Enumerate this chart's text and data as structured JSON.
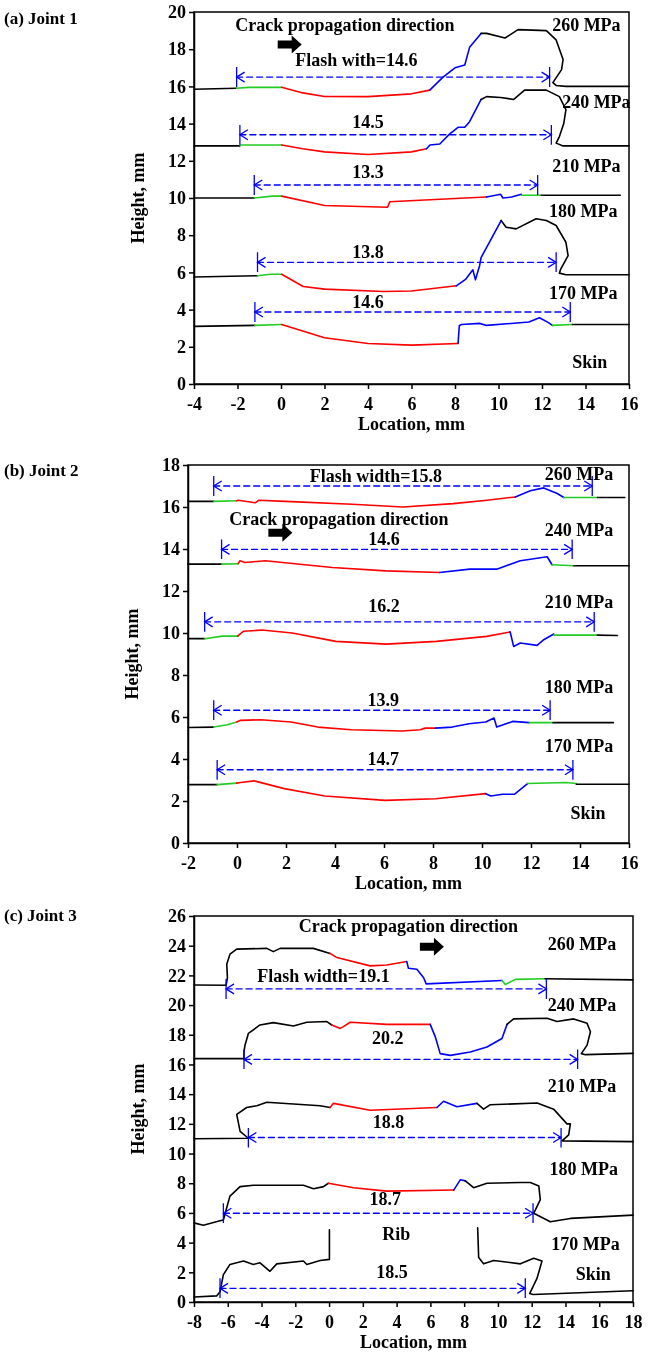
{
  "chart_data": [
    {
      "type": "line",
      "title": "(a)  Joint 1",
      "xlabel": "Location, mm",
      "ylabel": "Height, mm",
      "xlim": [
        -4,
        16
      ],
      "ylim": [
        0,
        20
      ],
      "xticks": [
        -4,
        -2,
        0,
        2,
        4,
        6,
        8,
        10,
        12,
        14,
        16
      ],
      "yticks": [
        0,
        2,
        4,
        6,
        8,
        10,
        12,
        14,
        16,
        18,
        20
      ],
      "series": [
        {
          "type": "line",
          "color": "#000000",
          "x": [
            -4,
            -2.04
          ],
          "values": [
            15.85,
            15.9
          ]
        },
        {
          "type": "line",
          "color": "#22cc22",
          "x": [
            -2.04,
            -1.5,
            0.03
          ],
          "values": [
            15.9,
            15.95,
            15.95
          ]
        },
        {
          "type": "line",
          "color": "#ff0000",
          "x": [
            0.03,
            1,
            2,
            4,
            6,
            6.84
          ],
          "values": [
            15.95,
            15.65,
            15.46,
            15.45,
            15.6,
            15.8
          ]
        },
        {
          "type": "line",
          "color": "#0000ff",
          "x": [
            6.84,
            7.45,
            8.0,
            8.45,
            8.67,
            9.2
          ],
          "values": [
            15.8,
            16.5,
            17.0,
            17.15,
            18.1,
            18.85
          ]
        },
        {
          "type": "line",
          "color": "#000000",
          "x": [
            9.2,
            9.45,
            10.3,
            10.9,
            12.2,
            12.65,
            12.97,
            12.9,
            12.5,
            12.65,
            13.1,
            16
          ],
          "values": [
            18.85,
            18.85,
            18.6,
            19.05,
            19.0,
            18.5,
            17.45,
            16.9,
            16.2,
            16.05,
            16.0,
            16.0
          ]
        },
        {
          "type": "line",
          "color": "#0000ff",
          "line_style": "dashed",
          "x": [
            -2.04,
            12.35
          ],
          "values": [
            16.5,
            16.5
          ]
        },
        {
          "type": "line",
          "color": "#000000",
          "x": [
            -4,
            -1.89
          ],
          "values": [
            12.8,
            12.8
          ]
        },
        {
          "type": "line",
          "color": "#22cc22",
          "x": [
            -1.89,
            0.03
          ],
          "values": [
            12.85,
            12.85
          ]
        },
        {
          "type": "line",
          "color": "#ff0000",
          "x": [
            0.03,
            1,
            2,
            4,
            6,
            6.69
          ],
          "values": [
            12.85,
            12.65,
            12.48,
            12.34,
            12.48,
            12.65
          ]
        },
        {
          "type": "line",
          "color": "#0000ff",
          "x": [
            6.69,
            6.85,
            7.3,
            7.76,
            8.14,
            8.45,
            8.67,
            9.2
          ],
          "values": [
            12.65,
            12.85,
            12.9,
            13.45,
            13.8,
            13.8,
            14.1,
            15.3
          ]
        },
        {
          "type": "line",
          "color": "#000000",
          "x": [
            9.2,
            9.45,
            10.1,
            10.7,
            11.2,
            12.2,
            12.8,
            13.1,
            13.0,
            12.8,
            12.65,
            12.97,
            16
          ],
          "values": [
            15.3,
            15.45,
            15.4,
            15.3,
            15.8,
            15.8,
            15.45,
            14.75,
            14.0,
            13.3,
            12.95,
            12.8,
            12.8
          ]
        },
        {
          "type": "line",
          "color": "#0000ff",
          "line_style": "dashed",
          "x": [
            -1.89,
            12.43
          ],
          "values": [
            13.4,
            13.4
          ]
        },
        {
          "type": "line",
          "color": "#000000",
          "x": [
            -4,
            -1.23
          ],
          "values": [
            10.0,
            10.0
          ]
        },
        {
          "type": "line",
          "color": "#22cc22",
          "x": [
            -1.23,
            -0.4,
            0.03
          ],
          "values": [
            10.0,
            10.1,
            10.1
          ]
        },
        {
          "type": "line",
          "color": "#ff0000",
          "x": [
            0.03,
            2.0,
            4.9,
            5.0,
            8.0,
            9.45
          ],
          "values": [
            10.1,
            9.6,
            9.5,
            9.8,
            9.97,
            10.05
          ]
        },
        {
          "type": "line",
          "color": "#0000ff",
          "x": [
            9.45,
            10.1,
            10.2,
            10.6,
            11.05
          ],
          "values": [
            10.05,
            10.2,
            10.0,
            10.05,
            10.2
          ]
        },
        {
          "type": "line",
          "color": "#22cc22",
          "x": [
            11.05,
            11.97
          ],
          "values": [
            10.15,
            10.15
          ]
        },
        {
          "type": "line",
          "color": "#000000",
          "x": [
            11.97,
            15.6
          ],
          "values": [
            10.15,
            10.15
          ]
        },
        {
          "type": "line",
          "color": "#0000ff",
          "line_style": "dashed",
          "x": [
            -1.23,
            11.8
          ],
          "values": [
            10.7,
            10.7
          ]
        },
        {
          "type": "line",
          "color": "#000000",
          "x": [
            -4,
            -1.08
          ],
          "values": [
            5.75,
            5.82
          ]
        },
        {
          "type": "line",
          "color": "#22cc22",
          "x": [
            -1.08,
            -0.5,
            0.03
          ],
          "values": [
            5.82,
            5.9,
            5.9
          ]
        },
        {
          "type": "line",
          "color": "#ff0000",
          "x": [
            0.03,
            1.02,
            2.0,
            4.7,
            6.0,
            8.06
          ],
          "values": [
            5.9,
            5.24,
            5.1,
            4.97,
            5.0,
            5.28
          ]
        },
        {
          "type": "line",
          "color": "#0000ff",
          "x": [
            8.06,
            8.5,
            8.82,
            8.94,
            9.13,
            9.2,
            9.58,
            10.12
          ],
          "values": [
            5.28,
            5.64,
            6.14,
            5.6,
            6.36,
            6.8,
            7.62,
            8.79
          ]
        },
        {
          "type": "line",
          "color": "#000000",
          "x": [
            10.12,
            10.35,
            10.81,
            11.73,
            12.2,
            12.65,
            13.1,
            13.2,
            12.86,
            12.8,
            13.1,
            16
          ],
          "values": [
            8.79,
            8.43,
            8.34,
            8.88,
            8.79,
            8.52,
            7.62,
            6.9,
            6.18,
            5.96,
            5.87,
            5.87
          ]
        },
        {
          "type": "line",
          "color": "#0000ff",
          "line_style": "dashed",
          "x": [
            -1.08,
            12.65
          ],
          "values": [
            6.54,
            6.54
          ]
        },
        {
          "type": "line",
          "color": "#000000",
          "x": [
            -4,
            -1.2
          ],
          "values": [
            3.1,
            3.15
          ]
        },
        {
          "type": "line",
          "color": "#22cc22",
          "x": [
            -1.2,
            0.03
          ],
          "values": [
            3.15,
            3.2
          ]
        },
        {
          "type": "line",
          "color": "#ff0000",
          "x": [
            0.03,
            2.0,
            4.0,
            6.0,
            8.14
          ],
          "values": [
            3.2,
            2.49,
            2.18,
            2.09,
            2.18
          ]
        },
        {
          "type": "line",
          "color": "#0000ff",
          "x": [
            8.14,
            8.2,
            8.3,
            9.13,
            9.45,
            11.4,
            11.88,
            12.3,
            12.47
          ],
          "values": [
            2.18,
            3.15,
            3.2,
            3.26,
            3.15,
            3.33,
            3.56,
            3.3,
            3.15
          ]
        },
        {
          "type": "line",
          "color": "#22cc22",
          "x": [
            12.47,
            13.4
          ],
          "values": [
            3.15,
            3.2
          ]
        },
        {
          "type": "line",
          "color": "#000000",
          "x": [
            13.4,
            16
          ],
          "values": [
            3.2,
            3.2
          ]
        },
        {
          "type": "line",
          "color": "#0000ff",
          "line_style": "dashed",
          "x": [
            -1.2,
            13.3
          ],
          "values": [
            3.87,
            3.87
          ]
        }
      ],
      "annotations": [
        "Crack propagation direction",
        "Flash with=14.6",
        "260 MPa",
        "14.5",
        "240 MPa",
        "13.3",
        "210 MPa",
        "13.8",
        "180 MPa",
        "14.6",
        "170 MPa",
        "Skin"
      ]
    },
    {
      "type": "line",
      "title": "(b)  Joint 2",
      "xlabel": "Location, mm",
      "ylabel": "Height, mm",
      "xlim": [
        -2,
        16
      ],
      "ylim": [
        0,
        18
      ],
      "xticks": [
        -2,
        0,
        2,
        4,
        6,
        8,
        10,
        12,
        14,
        16
      ],
      "yticks": [
        0,
        2,
        4,
        6,
        8,
        10,
        12,
        14,
        16,
        18
      ],
      "series": [
        {
          "type": "line",
          "color": "#000000",
          "x": [
            -2,
            -0.95
          ],
          "values": [
            16.27,
            16.27
          ]
        },
        {
          "type": "line",
          "color": "#22cc22",
          "x": [
            -0.95,
            -0.01
          ],
          "values": [
            16.27,
            16.3
          ]
        },
        {
          "type": "line",
          "color": "#ff0000",
          "x": [
            -0.01,
            0.05,
            0.74,
            0.88,
            1.97,
            4.7,
            6.77,
            8.82,
            10.2,
            11.36
          ],
          "values": [
            16.3,
            16.32,
            16.2,
            16.32,
            16.27,
            16.13,
            16.0,
            16.16,
            16.32,
            16.48
          ]
        },
        {
          "type": "line",
          "color": "#0000ff",
          "x": [
            11.36,
            11.97,
            12.52,
            13.07,
            13.34
          ],
          "values": [
            16.48,
            16.77,
            16.91,
            16.64,
            16.45
          ]
        },
        {
          "type": "line",
          "color": "#22cc22",
          "x": [
            13.34,
            14.71
          ],
          "values": [
            16.45,
            16.45
          ]
        },
        {
          "type": "line",
          "color": "#000000",
          "x": [
            14.71,
            15.83
          ],
          "values": [
            16.45,
            16.45
          ]
        },
        {
          "type": "line",
          "color": "#0000ff",
          "line_style": "dashed",
          "x": [
            -0.95,
            14.5
          ],
          "values": [
            17.0,
            17.0
          ]
        },
        {
          "type": "line",
          "color": "#000000",
          "x": [
            -2,
            -0.63
          ],
          "values": [
            13.28,
            13.28
          ]
        },
        {
          "type": "line",
          "color": "#22cc22",
          "x": [
            -0.63,
            0.05
          ],
          "values": [
            13.28,
            13.3
          ]
        },
        {
          "type": "line",
          "color": "#ff0000",
          "x": [
            0.05,
            0.12,
            0.33,
            1.15,
            3.89,
            6.08,
            8.27
          ],
          "values": [
            13.3,
            13.44,
            13.36,
            13.44,
            13.12,
            12.96,
            12.88
          ]
        },
        {
          "type": "line",
          "color": "#0000ff",
          "x": [
            8.27,
            9.5,
            10.6,
            11.56,
            12.66,
            12.86
          ],
          "values": [
            12.88,
            13.04,
            13.04,
            13.44,
            13.63,
            13.25
          ]
        },
        {
          "type": "line",
          "color": "#22cc22",
          "x": [
            12.86,
            13.75
          ],
          "values": [
            13.25,
            13.2
          ]
        },
        {
          "type": "line",
          "color": "#000000",
          "x": [
            13.75,
            16
          ],
          "values": [
            13.2,
            13.2
          ]
        },
        {
          "type": "line",
          "color": "#0000ff",
          "line_style": "dashed",
          "x": [
            -0.63,
            13.68
          ],
          "values": [
            13.98,
            13.98
          ]
        },
        {
          "type": "line",
          "color": "#000000",
          "x": [
            -2,
            -1.32
          ],
          "values": [
            9.73,
            9.73
          ]
        },
        {
          "type": "line",
          "color": "#22cc22",
          "x": [
            -1.32,
            -0.6,
            0.03
          ],
          "values": [
            9.73,
            9.85,
            9.85
          ]
        },
        {
          "type": "line",
          "color": "#ff0000",
          "x": [
            0.03,
            0.12,
            0.26,
            1.01,
            2.25,
            4.03,
            6.08,
            8.14,
            10.19,
            11.15
          ],
          "values": [
            9.85,
            9.95,
            10.08,
            10.14,
            10.0,
            9.6,
            9.47,
            9.6,
            9.84,
            10.05
          ]
        },
        {
          "type": "line",
          "color": "#0000ff",
          "x": [
            11.15,
            11.29,
            11.56,
            12.25,
            12.52,
            12.93
          ],
          "values": [
            10.05,
            9.36,
            9.52,
            9.41,
            9.68,
            9.95
          ]
        },
        {
          "type": "line",
          "color": "#22cc22",
          "x": [
            12.93,
            14.71
          ],
          "values": [
            9.9,
            9.9
          ]
        },
        {
          "type": "line",
          "color": "#000000",
          "x": [
            14.71,
            15.53
          ],
          "values": [
            9.9,
            9.88
          ]
        },
        {
          "type": "line",
          "color": "#0000ff",
          "line_style": "dashed",
          "x": [
            -1.32,
            14.58
          ],
          "values": [
            10.53,
            10.53
          ]
        },
        {
          "type": "line",
          "color": "#000000",
          "x": [
            -2,
            -0.95
          ],
          "values": [
            5.5,
            5.52
          ]
        },
        {
          "type": "line",
          "color": "#22cc22",
          "x": [
            -0.95,
            -0.4,
            -0.01
          ],
          "values": [
            5.52,
            5.63,
            5.76
          ]
        },
        {
          "type": "line",
          "color": "#ff0000",
          "x": [
            -0.01,
            0.15,
            0.97,
            2.2,
            3.3,
            4.67,
            6.73,
            7.48,
            7.68,
            8.1
          ],
          "values": [
            5.76,
            5.84,
            5.87,
            5.76,
            5.52,
            5.39,
            5.33,
            5.39,
            5.47,
            5.47
          ]
        },
        {
          "type": "line",
          "color": "#0000ff",
          "x": [
            8.1,
            8.78,
            9.47,
            10.15,
            10.49,
            10.6,
            11.25,
            11.93
          ],
          "values": [
            5.47,
            5.52,
            5.68,
            5.76,
            5.95,
            5.52,
            5.79,
            5.73
          ]
        },
        {
          "type": "line",
          "color": "#22cc22",
          "x": [
            11.93,
            12.9
          ],
          "values": [
            5.73,
            5.73
          ]
        },
        {
          "type": "line",
          "color": "#000000",
          "x": [
            12.9,
            15.36
          ],
          "values": [
            5.73,
            5.73
          ]
        },
        {
          "type": "line",
          "color": "#0000ff",
          "line_style": "dashed",
          "x": [
            -0.95,
            12.78
          ],
          "values": [
            6.32,
            6.32
          ]
        },
        {
          "type": "line",
          "color": "#000000",
          "x": [
            -2,
            -0.81
          ],
          "values": [
            2.78,
            2.78
          ]
        },
        {
          "type": "line",
          "color": "#22cc22",
          "x": [
            -0.81,
            -0.01
          ],
          "values": [
            2.78,
            2.85
          ]
        },
        {
          "type": "line",
          "color": "#ff0000",
          "x": [
            -0.01,
            0.15,
            0.7,
            1.93,
            3.58,
            6.04,
            8.1,
            10.15
          ],
          "values": [
            2.85,
            2.88,
            2.96,
            2.59,
            2.24,
            2.03,
            2.11,
            2.35
          ]
        },
        {
          "type": "line",
          "color": "#0000ff",
          "x": [
            10.15,
            10.36,
            10.84,
            11.32,
            11.86
          ],
          "values": [
            2.35,
            2.24,
            2.32,
            2.32,
            2.83
          ]
        },
        {
          "type": "line",
          "color": "#22cc22",
          "x": [
            11.86,
            13.44,
            13.85
          ],
          "values": [
            2.83,
            2.88,
            2.83
          ]
        },
        {
          "type": "line",
          "color": "#000000",
          "x": [
            13.85,
            16
          ],
          "values": [
            2.8,
            2.8
          ]
        },
        {
          "type": "line",
          "color": "#0000ff",
          "line_style": "dashed",
          "x": [
            -0.81,
            13.71
          ],
          "values": [
            3.49,
            3.49
          ]
        }
      ],
      "annotations": [
        "Flash width=15.8",
        "260 MPa",
        "Crack propagation direction",
        "14.6",
        "240 MPa",
        "16.2",
        "210 MPa",
        "13.9",
        "180 MPa",
        "14.7",
        "170 MPa",
        "Skin"
      ]
    },
    {
      "type": "line",
      "title": "(c)  Joint 3",
      "xlabel": "Location, mm",
      "ylabel": "Height, mm",
      "xlim": [
        -8,
        18
      ],
      "ylim": [
        0,
        26
      ],
      "xticks": [
        -8,
        -6,
        -4,
        -2,
        0,
        2,
        4,
        6,
        8,
        10,
        12,
        14,
        16,
        18
      ],
      "yticks": [
        0,
        2,
        4,
        6,
        8,
        10,
        12,
        14,
        16,
        18,
        20,
        22,
        24,
        26
      ],
      "series": [
        {
          "type": "line",
          "color": "#000000",
          "x": [
            -8,
            -6.1,
            -6.02,
            -6.06,
            -5.87,
            -5.47,
            -3.69,
            -3.3,
            -2.9,
            -0.93,
            0.06
          ],
          "values": [
            21.35,
            21.34,
            21.84,
            22.75,
            23.43,
            23.77,
            23.82,
            23.6,
            23.82,
            23.82,
            23.48
          ]
        },
        {
          "type": "line",
          "color": "#ff0000",
          "x": [
            0.06,
            0.46,
            2.43,
            3.42,
            4.6
          ],
          "values": [
            23.48,
            23.2,
            22.64,
            22.7,
            22.93
          ]
        },
        {
          "type": "line",
          "color": "#0000ff",
          "x": [
            4.6,
            4.7,
            5.2,
            5.6,
            5.75,
            10.24
          ],
          "values": [
            22.93,
            22.48,
            22.41,
            21.84,
            21.43,
            21.66
          ]
        },
        {
          "type": "line",
          "color": "#22cc22",
          "x": [
            10.24,
            10.44,
            11.03,
            12.8
          ],
          "values": [
            21.66,
            21.39,
            21.73,
            21.77
          ]
        },
        {
          "type": "line",
          "color": "#000000",
          "x": [
            12.8,
            18
          ],
          "values": [
            21.77,
            21.7
          ]
        },
        {
          "type": "line",
          "color": "#0000ff",
          "line_style": "dashed",
          "x": [
            -6.1,
            12.87
          ],
          "values": [
            21.09,
            21.09
          ]
        },
        {
          "type": "line",
          "color": "#000000",
          "x": [
            -8,
            -5.04,
            -5.04,
            -4.98,
            -4.78,
            -4.09,
            -3.3,
            -2.11,
            -1.32,
            -0.13,
            0.16
          ],
          "values": [
            16.39,
            16.39,
            16.84,
            17.3,
            18.09,
            18.66,
            18.82,
            18.59,
            18.84,
            18.89,
            18.66
          ]
        },
        {
          "type": "line",
          "color": "#ff0000",
          "x": [
            0.16,
            0.66,
            0.85,
            1.25,
            3.42,
            5.99
          ],
          "values": [
            18.66,
            18.43,
            18.55,
            18.84,
            18.7,
            18.7
          ]
        },
        {
          "type": "line",
          "color": "#0000ff",
          "x": [
            5.99,
            6.29,
            6.58,
            7.18,
            8.36,
            9.35,
            10.24,
            10.54
          ],
          "values": [
            18.7,
            17.86,
            16.73,
            16.61,
            16.84,
            17.18,
            17.75,
            18.7
          ]
        },
        {
          "type": "line",
          "color": "#000000",
          "x": [
            10.54,
            10.93,
            12.91,
            13.5,
            14.49,
            15.28,
            15.48,
            15.28,
            14.94,
            15.18,
            18
          ],
          "values": [
            18.7,
            19.07,
            19.11,
            18.89,
            19.07,
            18.77,
            18.2,
            17.3,
            16.73,
            16.66,
            16.75
          ]
        },
        {
          "type": "line",
          "color": "#0000ff",
          "line_style": "dashed",
          "x": [
            -5.04,
            14.72
          ],
          "values": [
            16.34,
            16.34
          ]
        },
        {
          "type": "line",
          "color": "#000000",
          "x": [
            -8,
            -4.78,
            -5.27,
            -5.47,
            -4.88,
            -4.28,
            -3.69,
            -0.53,
            0.06
          ],
          "values": [
            11.0,
            11.03,
            11.49,
            12.64,
            13.1,
            13.22,
            13.45,
            13.22,
            13.1
          ]
        },
        {
          "type": "line",
          "color": "#ff0000",
          "x": [
            0.06,
            0.26,
            2.43,
            6.39
          ],
          "values": [
            13.1,
            13.38,
            12.92,
            13.1
          ]
        },
        {
          "type": "line",
          "color": "#0000ff",
          "x": [
            6.39,
            6.78,
            7.57,
            8.76
          ],
          "values": [
            13.1,
            13.52,
            13.15,
            13.38
          ]
        },
        {
          "type": "line",
          "color": "#000000",
          "x": [
            8.76,
            9.15,
            9.55,
            12.32,
            13.3,
            14.09,
            14.29,
            14.19,
            13.8,
            18
          ],
          "values": [
            13.38,
            12.99,
            13.29,
            13.4,
            12.99,
            12.0,
            12.0,
            11.26,
            10.85,
            10.8
          ]
        },
        {
          "type": "line",
          "color": "#0000ff",
          "line_style": "dashed",
          "x": [
            -4.78,
            13.74
          ],
          "values": [
            11.08,
            11.08
          ]
        },
        {
          "type": "line",
          "color": "#000000",
          "x": [
            -8,
            -7.45,
            -6.46,
            -6.26,
            -6.1,
            -5.87,
            -5.27,
            -4.48,
            -1.52,
            -0.92,
            -0.33,
            -0.04
          ],
          "values": [
            5.33,
            5.17,
            5.47,
            5.52,
            6.2,
            7.13,
            7.77,
            7.86,
            7.86,
            7.63,
            7.77,
            8.0
          ]
        },
        {
          "type": "line",
          "color": "#ff0000",
          "x": [
            -0.04,
            1.45,
            3.42,
            7.38
          ],
          "values": [
            8.0,
            7.7,
            7.47,
            7.54
          ]
        },
        {
          "type": "line",
          "color": "#0000ff",
          "x": [
            7.38,
            7.77,
            8.07
          ],
          "values": [
            7.54,
            8.23,
            8.16
          ]
        },
        {
          "type": "line",
          "color": "#000000",
          "x": [
            8.07,
            8.56,
            9.35,
            11.33,
            11.92,
            12.42,
            12.51,
            12.22,
            12.12,
            13.1,
            14.29,
            18
          ],
          "values": [
            8.16,
            7.7,
            8.0,
            8.05,
            8.05,
            7.82,
            6.9,
            6.2,
            5.98,
            5.4,
            5.63,
            5.85
          ]
        },
        {
          "type": "line",
          "color": "#0000ff",
          "line_style": "dashed",
          "x": [
            -6.26,
            12.08
          ],
          "values": [
            5.98,
            5.98
          ]
        },
        {
          "type": "line",
          "color": "#000000",
          "x": [
            -8,
            -6.66,
            -6.46,
            -6.26,
            -5.87,
            -5.07,
            -4.48,
            -4.09,
            -3.5,
            -3.1,
            -1.52,
            -1.32,
            -0.53,
            0.02,
            0.02
          ],
          "values": [
            0.34,
            0.41,
            0.69,
            1.84,
            2.53,
            2.76,
            2.53,
            2.64,
            2.07,
            2.57,
            2.76,
            2.53,
            2.8,
            2.87,
            4.87
          ]
        },
        {
          "type": "line",
          "color": "#000000",
          "x": [
            8.8,
            8.86,
            9.15,
            9.75,
            11.33,
            12.12,
            12.61,
            12.32,
            11.88,
            12.08,
            18
          ],
          "values": [
            4.99,
            2.99,
            2.57,
            2.8,
            2.57,
            2.94,
            2.76,
            1.61,
            0.57,
            0.51,
            0.76
          ]
        },
        {
          "type": "line",
          "color": "#0000ff",
          "line_style": "dashed",
          "x": [
            -6.46,
            11.62
          ],
          "values": [
            0.92,
            0.92
          ]
        }
      ],
      "annotations": [
        "Crack propagation direction",
        "260 MPa",
        "Flash width=19.1",
        "240 MPa",
        "20.2",
        "210 MPa",
        "18.8",
        "180 MPa",
        "18.7",
        "Rib",
        "170 MPa",
        "18.5",
        "Skin"
      ]
    }
  ]
}
